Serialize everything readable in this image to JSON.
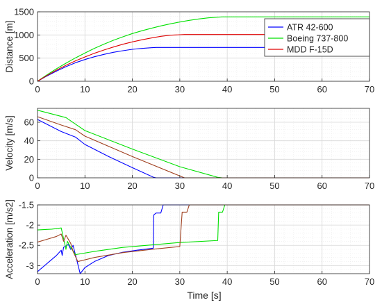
{
  "figure": {
    "xlabel": "Time [s]"
  },
  "legend": [
    {
      "label": "ATR 42-600",
      "color": "#0000ff"
    },
    {
      "label": "Boeing 737-800",
      "color": "#00e000"
    },
    {
      "label": "MDD F-15D",
      "color": "#e00000"
    }
  ],
  "chart_data": [
    {
      "type": "line",
      "title": "",
      "xlabel": "",
      "ylabel": "Distance [m]",
      "xlim": [
        0,
        70
      ],
      "ylim": [
        0,
        1500
      ],
      "xticks": [
        0,
        10,
        20,
        30,
        40,
        50,
        60,
        70
      ],
      "yticks": [
        0,
        500,
        1000,
        1500
      ],
      "grid": true,
      "minor_grid": true,
      "legend_position": "top-right",
      "series": [
        {
          "name": "ATR 42-600",
          "color": "#0000ff",
          "points": [
            [
              0,
              0
            ],
            [
              2,
              115
            ],
            [
              4,
              220
            ],
            [
              6,
              315
            ],
            [
              8,
              400
            ],
            [
              10,
              470
            ],
            [
              12,
              530
            ],
            [
              14,
              580
            ],
            [
              16,
              625
            ],
            [
              18,
              660
            ],
            [
              20,
              690
            ],
            [
              22,
              710
            ],
            [
              24,
              725
            ],
            [
              25,
              730
            ],
            [
              70,
              730
            ]
          ]
        },
        {
          "name": "Boeing 737-800",
          "color": "#00e000",
          "points": [
            [
              0,
              0
            ],
            [
              2,
              140
            ],
            [
              4,
              270
            ],
            [
              6,
              390
            ],
            [
              8,
              505
            ],
            [
              10,
              610
            ],
            [
              12,
              710
            ],
            [
              14,
              800
            ],
            [
              16,
              885
            ],
            [
              18,
              960
            ],
            [
              20,
              1030
            ],
            [
              22,
              1090
            ],
            [
              24,
              1145
            ],
            [
              26,
              1195
            ],
            [
              28,
              1240
            ],
            [
              30,
              1280
            ],
            [
              32,
              1315
            ],
            [
              34,
              1345
            ],
            [
              36,
              1370
            ],
            [
              38,
              1385
            ],
            [
              39,
              1390
            ],
            [
              70,
              1390
            ]
          ]
        },
        {
          "name": "MDD F-15D",
          "color": "#e00000",
          "points": [
            [
              0,
              0
            ],
            [
              2,
              125
            ],
            [
              4,
              240
            ],
            [
              6,
              345
            ],
            [
              8,
              440
            ],
            [
              10,
              525
            ],
            [
              12,
              605
            ],
            [
              14,
              675
            ],
            [
              16,
              740
            ],
            [
              18,
              800
            ],
            [
              20,
              850
            ],
            [
              22,
              895
            ],
            [
              24,
              935
            ],
            [
              26,
              970
            ],
            [
              28,
              995
            ],
            [
              30,
              1005
            ],
            [
              31,
              1010
            ],
            [
              70,
              1010
            ]
          ]
        }
      ]
    },
    {
      "type": "line",
      "title": "",
      "xlabel": "",
      "ylabel": "Velocity [m/s]",
      "xlim": [
        0,
        70
      ],
      "ylim": [
        0,
        75
      ],
      "xticks": [
        0,
        10,
        20,
        30,
        40,
        50,
        60,
        70
      ],
      "yticks": [
        0,
        20,
        40,
        60
      ],
      "grid": true,
      "minor_grid": true,
      "series": [
        {
          "name": "ATR 42-600",
          "color": "#0000ff",
          "points": [
            [
              0,
              63
            ],
            [
              5,
              50
            ],
            [
              8,
              44
            ],
            [
              10,
              36
            ],
            [
              15,
              23
            ],
            [
              20,
              11
            ],
            [
              24.5,
              0.5
            ],
            [
              25,
              0
            ],
            [
              70,
              0
            ]
          ]
        },
        {
          "name": "Boeing 737-800",
          "color": "#00e000",
          "points": [
            [
              0,
              73
            ],
            [
              6,
              65
            ],
            [
              8,
              58
            ],
            [
              10,
              51
            ],
            [
              20,
              31
            ],
            [
              30,
              12
            ],
            [
              38,
              0.5
            ],
            [
              39,
              0
            ],
            [
              70,
              0
            ]
          ]
        },
        {
          "name": "MDD F-15D",
          "color": "#a04020",
          "points": [
            [
              0,
              66
            ],
            [
              5,
              57
            ],
            [
              8,
              52
            ],
            [
              10,
              45
            ],
            [
              20,
              23
            ],
            [
              30,
              2
            ],
            [
              31,
              0
            ],
            [
              70,
              0
            ]
          ]
        }
      ]
    },
    {
      "type": "line",
      "title": "",
      "xlabel": "",
      "ylabel": "Acceleration [m/s2]",
      "xlim": [
        0,
        70
      ],
      "ylim": [
        -3.2,
        -1.5
      ],
      "xticks": [
        0,
        10,
        20,
        30,
        40,
        50,
        60,
        70
      ],
      "yticks": [
        -1.5,
        -2,
        -2.5,
        -3
      ],
      "grid": true,
      "minor_grid": true,
      "series": [
        {
          "name": "ATR 42-600",
          "color": "#0000ff",
          "points": [
            [
              0,
              -3.15
            ],
            [
              2,
              -2.95
            ],
            [
              4,
              -2.75
            ],
            [
              5,
              -2.62
            ],
            [
              5.2,
              -2.75
            ],
            [
              5.5,
              -2.55
            ],
            [
              6.5,
              -2.48
            ],
            [
              7,
              -2.6
            ],
            [
              7.5,
              -2.5
            ],
            [
              9,
              -3.2
            ],
            [
              10,
              -3.05
            ],
            [
              12,
              -2.9
            ],
            [
              15,
              -2.75
            ],
            [
              18,
              -2.67
            ],
            [
              21,
              -2.62
            ],
            [
              24.4,
              -2.57
            ],
            [
              24.5,
              -1.75
            ],
            [
              25,
              -1.7
            ],
            [
              26,
              -1.7
            ],
            [
              26.5,
              -1.5
            ],
            [
              70,
              -1.5
            ]
          ]
        },
        {
          "name": "Boeing 737-800",
          "color": "#00e000",
          "points": [
            [
              0,
              -2.12
            ],
            [
              3,
              -2.1
            ],
            [
              5,
              -2.07
            ],
            [
              6,
              -2.6
            ],
            [
              6.3,
              -2.4
            ],
            [
              7,
              -2.55
            ],
            [
              8,
              -2.73
            ],
            [
              12,
              -2.65
            ],
            [
              18,
              -2.55
            ],
            [
              25,
              -2.48
            ],
            [
              30,
              -2.43
            ],
            [
              38,
              -2.38
            ],
            [
              38.2,
              -1.68
            ],
            [
              39,
              -1.68
            ],
            [
              39.5,
              -1.5
            ],
            [
              70,
              -1.5
            ]
          ]
        },
        {
          "name": "MDD F-15D",
          "color": "#a04020",
          "points": [
            [
              0,
              -2.42
            ],
            [
              2,
              -2.35
            ],
            [
              4,
              -2.28
            ],
            [
              5,
              -2.22
            ],
            [
              5.5,
              -2.4
            ],
            [
              6,
              -2.25
            ],
            [
              7,
              -2.45
            ],
            [
              7.5,
              -2.65
            ],
            [
              8.5,
              -2.9
            ],
            [
              12,
              -2.8
            ],
            [
              18,
              -2.68
            ],
            [
              24,
              -2.6
            ],
            [
              30,
              -2.53
            ],
            [
              30.5,
              -1.68
            ],
            [
              31.5,
              -1.68
            ],
            [
              32,
              -1.5
            ],
            [
              70,
              -1.5
            ]
          ]
        }
      ]
    }
  ]
}
